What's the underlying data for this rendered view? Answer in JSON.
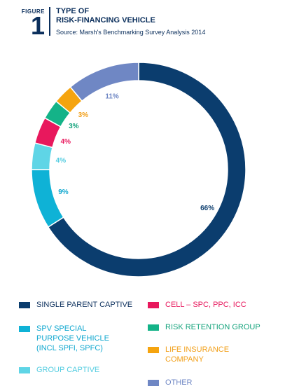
{
  "figure": {
    "label": "FIGURE",
    "number": "1",
    "title_line1": "TYPE OF",
    "title_line2": "RISK-FINANCING VEHICLE",
    "source": "Source: Marsh's Benchmarking Survey Analysis 2014"
  },
  "chart_data": {
    "type": "pie",
    "style": "donut",
    "title": "TYPE OF RISK-FINANCING VEHICLE",
    "unit": "%",
    "slices": [
      {
        "label": "SINGLE PARENT CAPTIVE",
        "value": 66,
        "display": "66%",
        "color": "#0b3d6e",
        "label_color": "#0b3d6e"
      },
      {
        "label": "SPV SPECIAL PURPOSE VEHICLE (INCL SPFI, SPFC)",
        "value": 9,
        "display": "9%",
        "color": "#0fb2d6",
        "label_color": "#0fa7cf"
      },
      {
        "label": "GROUP CAPTIVE",
        "value": 4,
        "display": "4%",
        "color": "#5fd5e6",
        "label_color": "#52cce0"
      },
      {
        "label": "CELL – SPC, PPC, ICC",
        "value": 4,
        "display": "4%",
        "color": "#e8185d",
        "label_color": "#e8185d"
      },
      {
        "label": "RISK RETENTION GROUP",
        "value": 3,
        "display": "3%",
        "color": "#14b388",
        "label_color": "#14a37c"
      },
      {
        "label": "LIFE INSURANCE COMPANY",
        "value": 3,
        "display": "3%",
        "color": "#f5a40f",
        "label_color": "#f2a01b"
      },
      {
        "label": "OTHER",
        "value": 11,
        "display": "11%",
        "color": "#6f87c4",
        "label_color": "#6f87c4"
      }
    ]
  },
  "legend": {
    "items": [
      {
        "lines": [
          "SINGLE PARENT CAPTIVE"
        ],
        "color": "#0b3d6e",
        "text_color": "#0b2f5c"
      },
      {
        "lines": [
          "SPV SPECIAL",
          "PURPOSE VEHICLE",
          "(INCL SPFI, SPFC)"
        ],
        "color": "#0fb2d6",
        "text_color": "#0fa7cf"
      },
      {
        "lines": [
          "GROUP CAPTIVE"
        ],
        "color": "#5fd5e6",
        "text_color": "#52cce0"
      },
      {
        "lines": [
          "CELL – SPC, PPC, ICC"
        ],
        "color": "#e8185d",
        "text_color": "#e8185d"
      },
      {
        "lines": [
          "RISK RETENTION GROUP"
        ],
        "color": "#14b388",
        "text_color": "#14a37c"
      },
      {
        "lines": [
          "LIFE INSURANCE",
          "COMPANY"
        ],
        "color": "#f5a40f",
        "text_color": "#f2a01b"
      },
      {
        "lines": [
          "OTHER"
        ],
        "color": "#6f87c4",
        "text_color": "#6f87c4"
      }
    ]
  }
}
